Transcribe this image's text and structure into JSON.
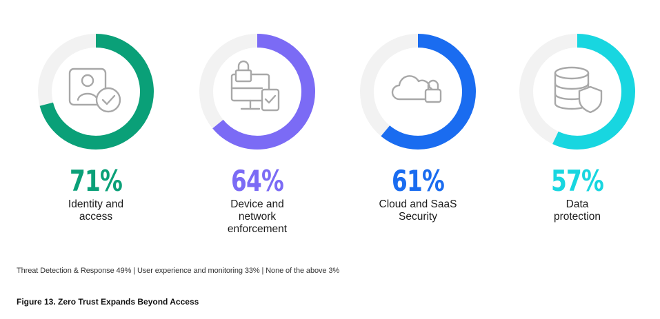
{
  "chart_data": {
    "type": "donut",
    "items": [
      {
        "value": 71,
        "pct_label": "71%",
        "label_lines": [
          "Identity and",
          "access"
        ],
        "color": "#0aa078",
        "icon": "identity-check-icon"
      },
      {
        "value": 64,
        "pct_label": "64%",
        "label_lines": [
          "Device and",
          "network",
          "enforcement"
        ],
        "color": "#7b6bf5",
        "icon": "device-lock-icon"
      },
      {
        "value": 61,
        "pct_label": "61%",
        "label_lines": [
          "Cloud and SaaS",
          "Security"
        ],
        "color": "#1a6cf0",
        "icon": "cloud-lock-icon"
      },
      {
        "value": 57,
        "pct_label": "57%",
        "label_lines": [
          "Data",
          "protection"
        ],
        "color": "#18d6e0",
        "icon": "database-shield-icon"
      }
    ],
    "track_color": "#f2f2f2",
    "icon_color": "#a8a8a8"
  },
  "footnote": "Threat Detection & Response  49%  |  User experience and monitoring  33%  |  None of the above 3%",
  "caption": "Figure 13. Zero Trust Expands Beyond Access"
}
